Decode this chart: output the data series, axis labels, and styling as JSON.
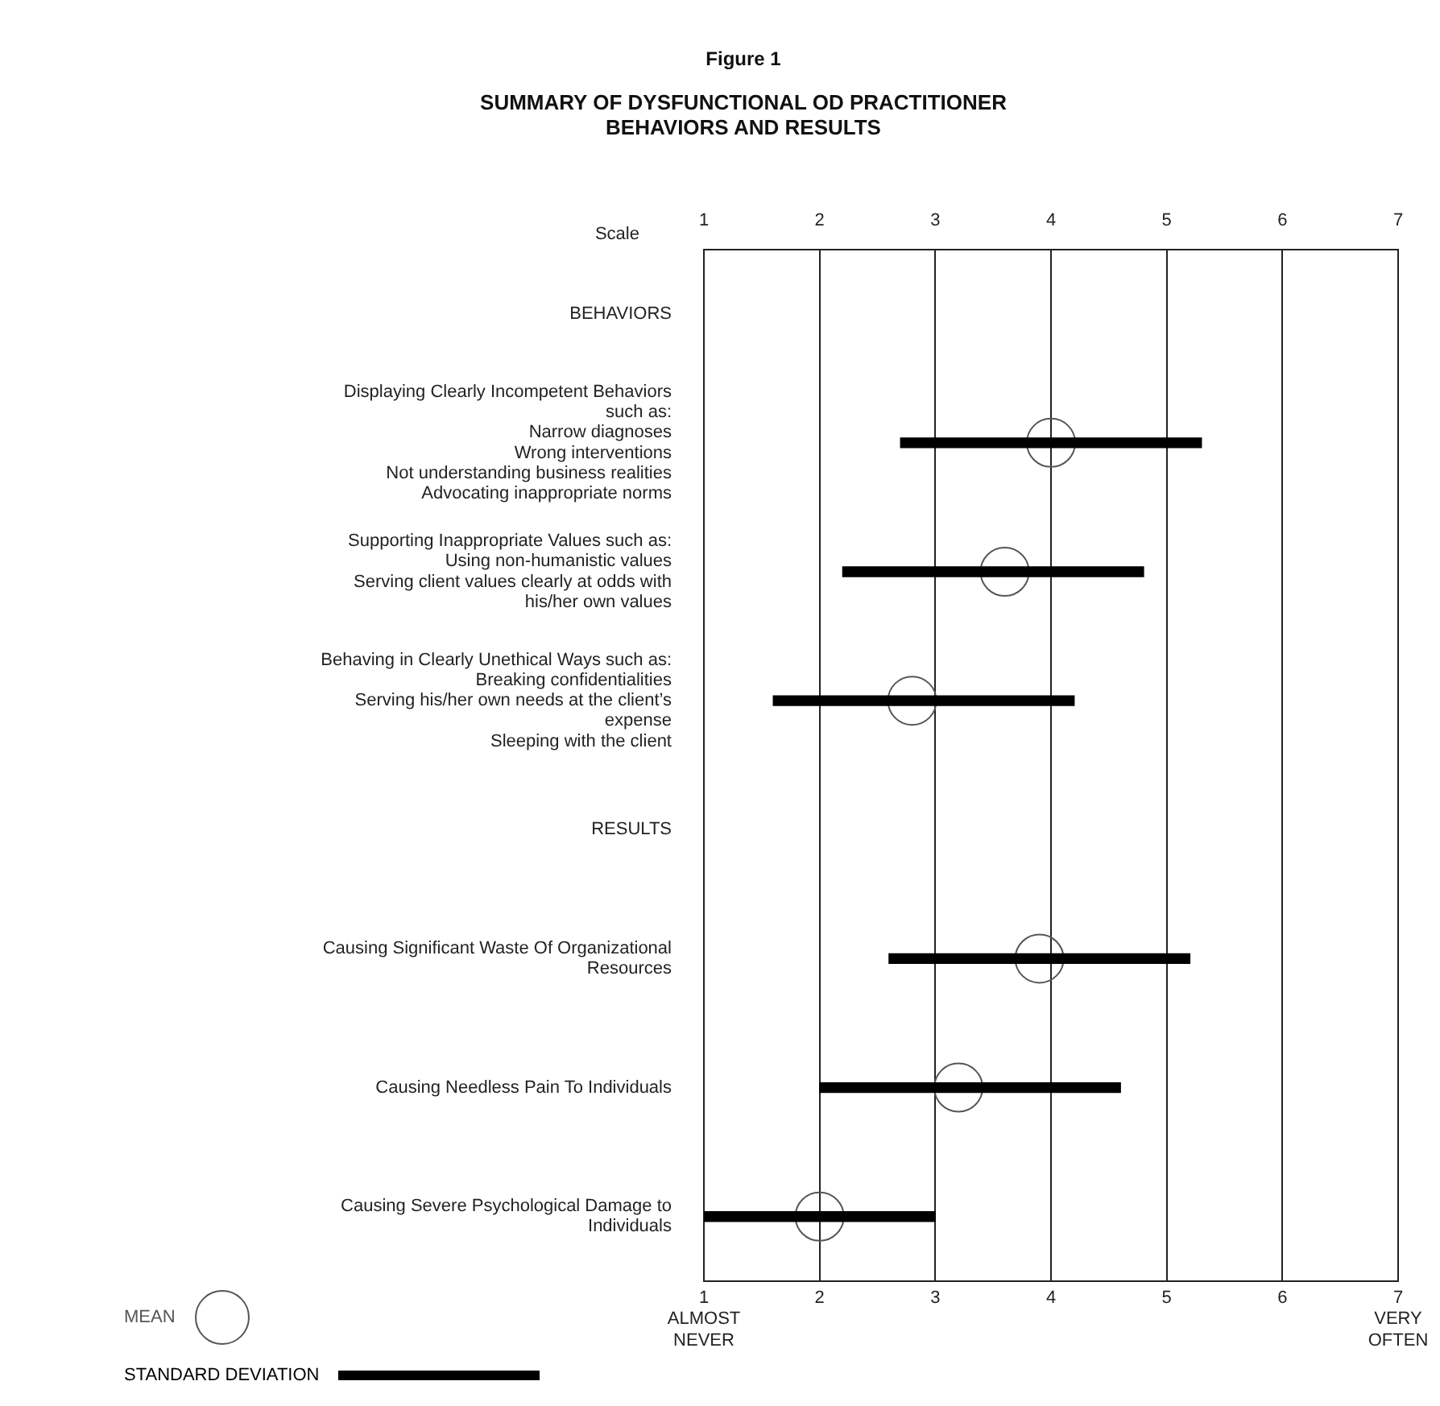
{
  "chart_data": {
    "type": "bar",
    "orientation": "horizontal",
    "title": "Figure 1",
    "subtitle": "SUMMARY OF DYSFUNCTIONAL OD PRACTITIONER\nBEHAVIORS AND RESULTS",
    "categories": [
      "BEHAVIORS",
      "Displaying Clearly Incompetent Behaviors\n  such as:\n      Narrow diagnoses\n      Wrong interventions\n      Not understanding business realities\n      Advocating inappropriate norms",
      "Supporting Inappropriate Values such as:\n      Using non-humanistic values\n      Serving client values clearly at odds with\n         his/her own values",
      "Behaving in Clearly Unethical Ways such as:\n      Breaking confidentialities\n      Serving his/her own needs at the client’s\n         expense\n      Sleeping with the client",
      "RESULTS",
      "Causing Significant Waste Of Organizational\n   Resources",
      "Causing Needless Pain To Individuals",
      "Causing Severe Psychological Damage to\n   Individuals"
    ],
    "series": [
      {
        "name": "MEAN",
        "type": "scatter",
        "color": "#555555",
        "values": [
          null,
          4.0,
          3.6,
          2.8,
          null,
          3.9,
          3.2,
          2.0
        ]
      },
      {
        "name": "STANDARD DEVIATION",
        "type": "bar",
        "color": "#000000",
        "base": [
          null,
          2.7,
          2.2,
          1.6,
          null,
          2.6,
          2.0,
          1.0
        ],
        "values": [
          null,
          2.6,
          2.6,
          2.6,
          null,
          2.6,
          2.6,
          2.0
        ]
      }
    ],
    "xlim": [
      1,
      7
    ],
    "xticks": [
      {
        "value": 1,
        "label": "1\nALMOST\nNEVER"
      },
      2,
      3,
      4,
      5,
      6,
      {
        "value": 7,
        "label": "7\nVERY\nOFTEN"
      }
    ],
    "x2label": "Scale",
    "x2lim": [
      1,
      7
    ],
    "x2ticks": [
      1,
      2,
      3,
      4,
      5,
      6,
      7
    ],
    "grid": "x",
    "legend": "bottom left",
    "marker": "circle"
  }
}
